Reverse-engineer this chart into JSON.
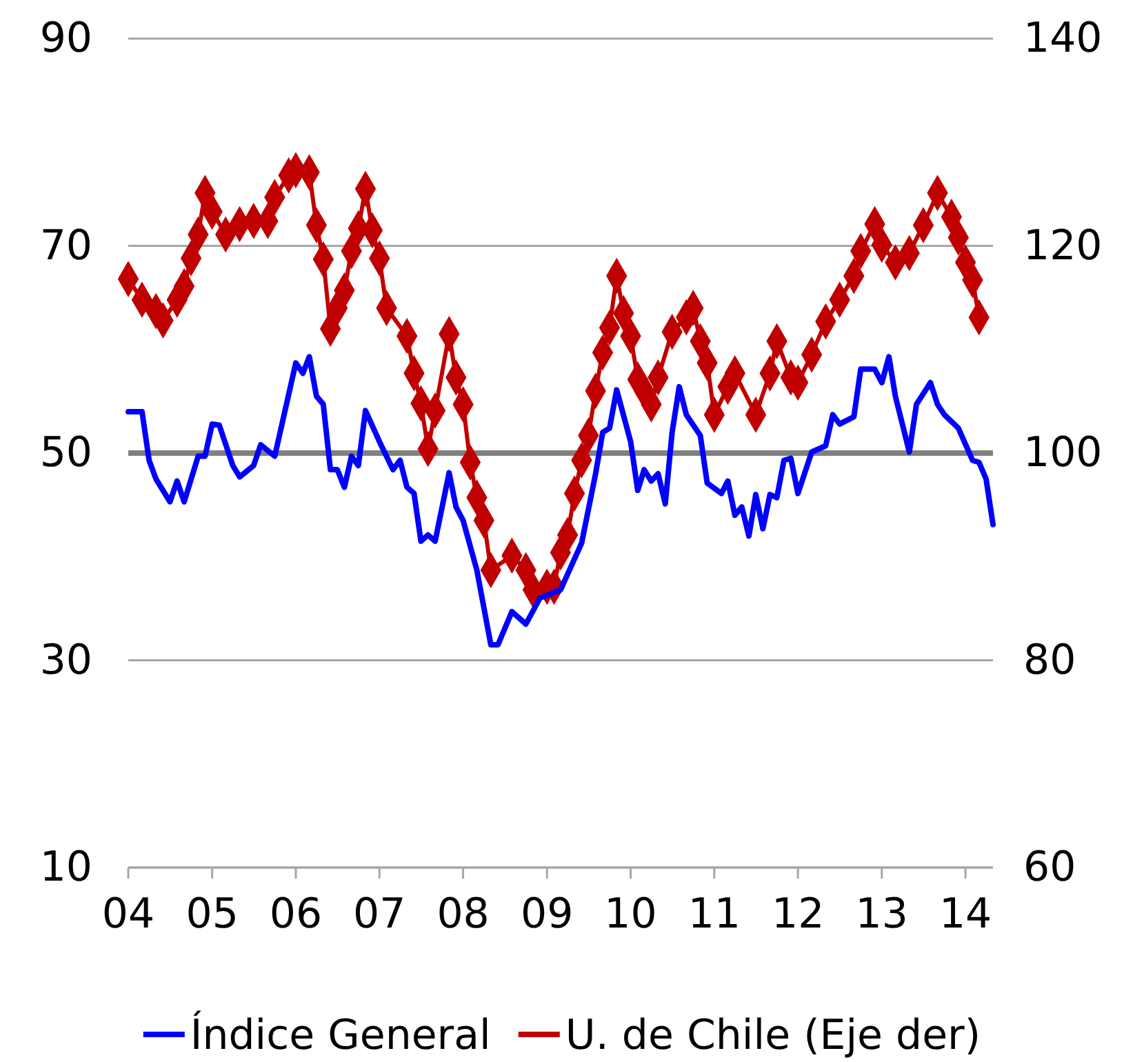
{
  "chart_data": {
    "type": "line",
    "grid": "y",
    "legend": "bottom",
    "xlim": [
      "2004-01",
      "2014-05"
    ],
    "xticks": [
      {
        "value": "2004-01",
        "label": "04"
      },
      {
        "value": "2005-01",
        "label": "05"
      },
      {
        "value": "2006-01",
        "label": "06"
      },
      {
        "value": "2007-01",
        "label": "07"
      },
      {
        "value": "2008-01",
        "label": "08"
      },
      {
        "value": "2009-01",
        "label": "09"
      },
      {
        "value": "2010-01",
        "label": "10"
      },
      {
        "value": "2011-01",
        "label": "11"
      },
      {
        "value": "2012-01",
        "label": "12"
      },
      {
        "value": "2013-01",
        "label": "13"
      },
      {
        "value": "2014-01",
        "label": "14"
      }
    ],
    "ylim": [
      10,
      90
    ],
    "yticks": [
      10,
      30,
      50,
      70,
      90
    ],
    "y2lim": [
      60,
      140
    ],
    "y2ticks": [
      60,
      80,
      100,
      120,
      140
    ],
    "ref_lines": [
      {
        "axis": "y",
        "value": 50,
        "color": "#808080"
      }
    ],
    "series": [
      {
        "name": "Índice General",
        "color": "#0000ff",
        "marker": "none",
        "x": [
          "2004-01",
          "2004-03",
          "2004-04",
          "2004-05",
          "2004-07",
          "2004-08",
          "2004-09",
          "2004-11",
          "2004-12",
          "2005-01",
          "2005-02",
          "2005-04",
          "2005-05",
          "2005-07",
          "2005-08",
          "2005-10",
          "2006-01",
          "2006-02",
          "2006-03",
          "2006-04",
          "2006-05",
          "2006-06",
          "2006-07",
          "2006-08",
          "2006-09",
          "2006-10",
          "2006-11",
          "2007-01",
          "2007-03",
          "2007-04",
          "2007-05",
          "2007-06",
          "2007-07",
          "2007-08",
          "2007-09",
          "2007-11",
          "2007-12",
          "2008-01",
          "2008-03",
          "2008-05",
          "2008-06",
          "2008-08",
          "2008-10",
          "2008-12",
          "2009-03",
          "2009-06",
          "2009-08",
          "2009-09",
          "2009-10",
          "2009-11",
          "2010-01",
          "2010-02",
          "2010-03",
          "2010-04",
          "2010-05",
          "2010-06",
          "2010-07",
          "2010-08",
          "2010-09",
          "2010-11",
          "2010-12",
          "2011-02",
          "2011-03",
          "2011-04",
          "2011-05",
          "2011-06",
          "2011-07",
          "2011-08",
          "2011-09",
          "2011-10",
          "2011-11",
          "2011-12",
          "2012-01",
          "2012-03",
          "2012-05",
          "2012-06",
          "2012-07",
          "2012-09",
          "2012-10",
          "2012-12",
          "2013-01",
          "2013-02",
          "2013-03",
          "2013-05",
          "2013-06",
          "2013-08",
          "2013-09",
          "2013-10",
          "2013-12",
          "2014-02",
          "2014-03",
          "2014-04",
          "2014-05"
        ],
        "values": [
          54,
          54,
          49.3,
          47.5,
          45.3,
          47.3,
          45.3,
          49.7,
          49.7,
          52.8,
          52.7,
          48.8,
          47.7,
          48.8,
          50.8,
          49.7,
          58.7,
          57.7,
          59.3,
          55.5,
          54.7,
          48.4,
          48.4,
          46.7,
          49.7,
          48.8,
          54.1,
          51.1,
          48.4,
          49.3,
          46.7,
          46.1,
          41.5,
          42.1,
          41.5,
          48.1,
          44.8,
          43.5,
          38.7,
          31.5,
          31.5,
          34.7,
          33.5,
          36,
          36.8,
          41.3,
          48,
          52,
          52.4,
          56.1,
          51.1,
          46.4,
          48.4,
          47.3,
          48,
          45.1,
          52,
          56.4,
          53.7,
          51.7,
          47.1,
          46.1,
          47.3,
          44,
          44.8,
          42,
          46,
          42.7,
          46,
          45.7,
          49.3,
          49.5,
          46.1,
          50.1,
          50.7,
          53.7,
          52.8,
          53.5,
          58.1,
          58.1,
          56.8,
          59.3,
          55.5,
          50.1,
          54.7,
          56.8,
          54.7,
          53.7,
          52.4,
          49.3,
          49.1,
          47.5,
          43.1
        ]
      },
      {
        "name": "U. de Chile (Eje der)",
        "color": "#c00000",
        "marker": "diamond",
        "axis": "y2",
        "x": [
          "2004-01",
          "2004-03",
          "2004-05",
          "2004-06",
          "2004-08",
          "2004-09",
          "2004-10",
          "2004-11",
          "2004-12",
          "2005-01",
          "2005-03",
          "2005-05",
          "2005-07",
          "2005-09",
          "2005-10",
          "2005-12",
          "2006-01",
          "2006-03",
          "2006-04",
          "2006-05",
          "2006-06",
          "2006-07",
          "2006-08",
          "2006-09",
          "2006-10",
          "2006-11",
          "2006-12",
          "2007-01",
          "2007-02",
          "2007-05",
          "2007-06",
          "2007-07",
          "2007-08",
          "2007-09",
          "2007-11",
          "2007-12",
          "2008-01",
          "2008-02",
          "2008-03",
          "2008-04",
          "2008-05",
          "2008-08",
          "2008-10",
          "2008-11",
          "2009-01",
          "2009-02",
          "2009-03",
          "2009-04",
          "2009-05",
          "2009-06",
          "2009-07",
          "2009-08",
          "2009-09",
          "2009-10",
          "2009-11",
          "2009-12",
          "2010-01",
          "2010-02",
          "2010-03",
          "2010-04",
          "2010-05",
          "2010-07",
          "2010-09",
          "2010-10",
          "2010-11",
          "2010-12",
          "2011-01",
          "2011-03",
          "2011-04",
          "2011-07",
          "2011-09",
          "2011-10",
          "2011-12",
          "2012-01",
          "2012-03",
          "2012-05",
          "2012-07",
          "2012-09",
          "2012-10",
          "2012-12",
          "2013-01",
          "2013-03",
          "2013-05",
          "2013-07",
          "2013-09",
          "2013-11",
          "2013-12",
          "2014-01",
          "2014-02",
          "2014-03"
        ],
        "values": [
          116.8,
          114.8,
          113.7,
          112.8,
          114.8,
          116.1,
          118.8,
          121.1,
          125.1,
          123.3,
          121.1,
          122.1,
          122.4,
          122.4,
          124.7,
          126.8,
          127.3,
          127.1,
          122,
          118.7,
          112,
          114,
          115.7,
          119.5,
          121.7,
          125.5,
          121.5,
          118.8,
          114,
          111.3,
          107.7,
          104.8,
          100.4,
          104.1,
          111.5,
          107.3,
          104.7,
          99.1,
          95.7,
          93.5,
          88.7,
          90.1,
          88.7,
          86.8,
          87.1,
          87.1,
          90.4,
          92.1,
          96.1,
          99.3,
          101.7,
          106,
          109.7,
          112.1,
          117.1,
          113.5,
          111.3,
          107.1,
          106,
          104.7,
          107.3,
          111.7,
          113.1,
          114,
          110.8,
          108.7,
          103.7,
          106.4,
          107.7,
          103.7,
          107.7,
          110.8,
          107.3,
          106.8,
          109.5,
          112.7,
          114.8,
          117.1,
          119.5,
          122.1,
          120.1,
          118.4,
          119.3,
          122,
          125.1,
          122.8,
          120.8,
          118.4,
          116.7,
          113.1
        ]
      }
    ]
  }
}
